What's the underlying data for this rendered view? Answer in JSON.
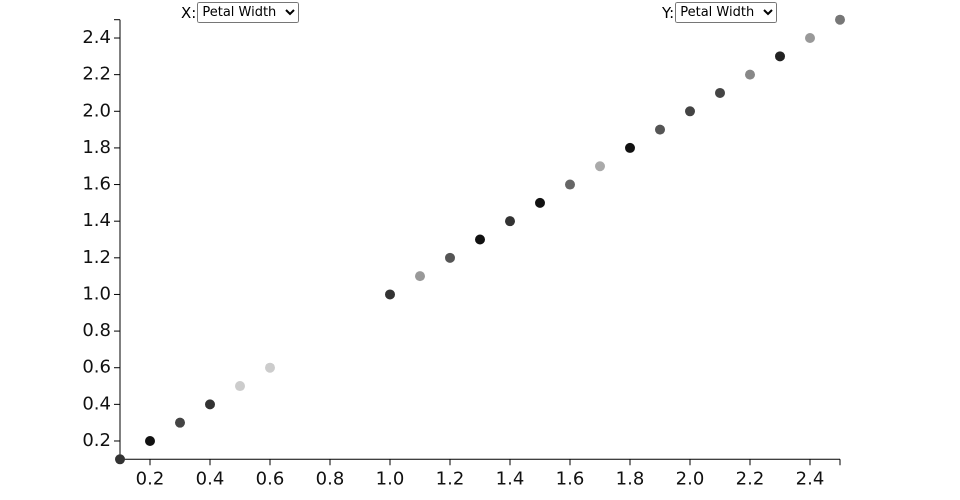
{
  "controls": {
    "x_label": "X:",
    "x_selected": "Petal Width",
    "y_label": "Y:",
    "y_selected": "Petal Width"
  },
  "chart_data": {
    "type": "scatter",
    "series": [
      {
        "x": [
          0.1,
          0.2,
          0.3,
          0.4,
          0.5,
          0.6,
          1.0,
          1.1,
          1.2,
          1.3,
          1.4,
          1.5,
          1.6,
          1.7,
          1.8,
          1.9,
          2.0,
          2.1,
          2.2,
          2.3,
          2.4,
          2.5
        ],
        "values": [
          0.1,
          0.2,
          0.3,
          0.4,
          0.5,
          0.6,
          1.0,
          1.1,
          1.2,
          1.3,
          1.4,
          1.5,
          1.6,
          1.7,
          1.8,
          1.9,
          2.0,
          2.1,
          2.2,
          2.3,
          2.4,
          2.5
        ],
        "colors": [
          "#333333",
          "#111111",
          "#444444",
          "#333333",
          "#cccccc",
          "#cccccc",
          "#333333",
          "#999999",
          "#555555",
          "#111111",
          "#333333",
          "#111111",
          "#666666",
          "#aaaaaa",
          "#111111",
          "#555555",
          "#444444",
          "#444444",
          "#888888",
          "#222222",
          "#999999",
          "#777777"
        ]
      }
    ],
    "xlim": [
      0.1,
      2.5
    ],
    "ylim": [
      0.1,
      2.5
    ],
    "xticks": [
      0.2,
      0.4,
      0.6,
      0.8,
      {
        "value": 1.0,
        "label": "1.0"
      },
      1.2,
      1.4,
      1.6,
      1.8,
      {
        "value": 2.0,
        "label": "2.0"
      },
      2.2,
      2.4
    ],
    "yticks": [
      0.2,
      0.4,
      0.6,
      0.8,
      {
        "value": 1.0,
        "label": "1.0"
      },
      1.2,
      1.4,
      1.6,
      1.8,
      {
        "value": 2.0,
        "label": "2.0"
      },
      2.2,
      2.4
    ]
  }
}
